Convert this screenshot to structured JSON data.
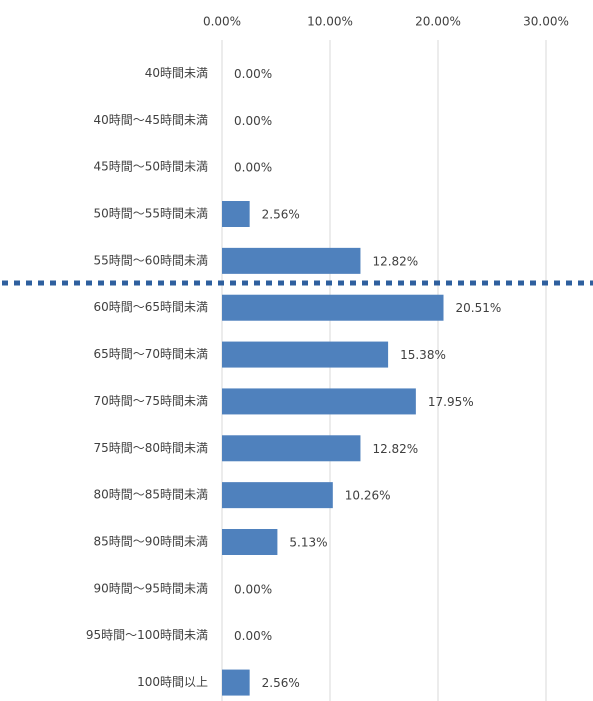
{
  "chart_data": {
    "type": "bar",
    "orientation": "horizontal",
    "categories": [
      "40時間未満",
      "40時間～45時間未満",
      "45時間～50時間未満",
      "50時間～55時間未満",
      "55時間～60時間未満",
      "60時間～65時間未満",
      "65時間～70時間未満",
      "70時間～75時間未満",
      "75時間～80時間未満",
      "80時間～85時間未満",
      "85時間～90時間未満",
      "90時間～95時間未満",
      "95時間～100時間未満",
      "100時間以上"
    ],
    "values": [
      0,
      0,
      0,
      2.56,
      12.82,
      20.51,
      15.38,
      17.95,
      12.82,
      10.26,
      5.13,
      0,
      0,
      2.56
    ],
    "value_labels": [
      "0.00%",
      "0.00%",
      "0.00%",
      "2.56%",
      "12.82%",
      "20.51%",
      "15.38%",
      "17.95%",
      "12.82%",
      "10.26%",
      "5.13%",
      "0.00%",
      "0.00%",
      "2.56%"
    ],
    "color": "#4f81bd",
    "xlim": [
      0,
      30
    ],
    "xticks": [
      {
        "value": 0,
        "label": "0.00%"
      },
      {
        "value": 10,
        "label": "10.00%"
      },
      {
        "value": 20,
        "label": "20.00%"
      },
      {
        "value": 30,
        "label": "30.00%"
      }
    ],
    "grid": true
  }
}
